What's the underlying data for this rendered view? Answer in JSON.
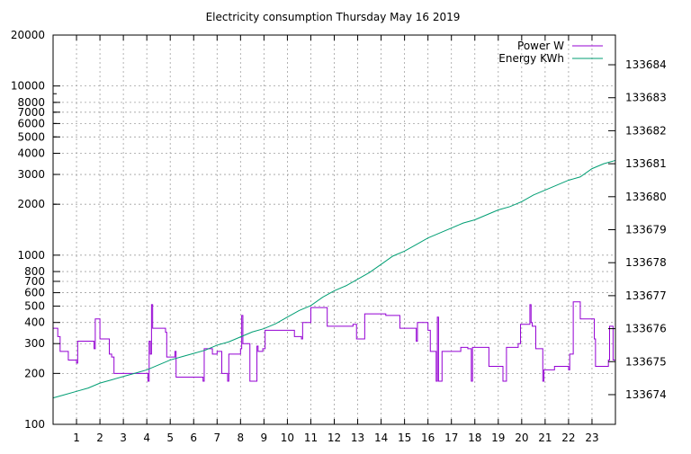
{
  "chart_data": {
    "type": "line",
    "title": "Electricity consumption Thursday May 16 2019",
    "xlabel": "",
    "ylabel": "",
    "y2label": "",
    "x_range": [
      0,
      24
    ],
    "y_range": [
      100,
      20000
    ],
    "y_scale": "log",
    "y2_range": [
      133673.1,
      133684.9
    ],
    "x_tick_labels": [
      "1",
      "2",
      "3",
      "4",
      "5",
      "6",
      "7",
      "8",
      "9",
      "10",
      "11",
      "12",
      "13",
      "14",
      "15",
      "16",
      "17",
      "18",
      "19",
      "20",
      "21",
      "22",
      "23"
    ],
    "y_tick_labels": [
      "100",
      "200",
      "300",
      "400",
      "500",
      "600",
      "700",
      "800",
      "1000",
      "2000",
      "3000",
      "4000",
      "5000",
      "6000",
      "7000",
      "8000",
      "10000",
      "20000"
    ],
    "y2_tick_labels": [
      "133674",
      "133675",
      "133676",
      "133677",
      "133678",
      "133679",
      "133680",
      "133681",
      "133682",
      "133683",
      "133684"
    ],
    "grid": true,
    "legend_position": "top-right",
    "series": [
      {
        "name": "Power W",
        "axis": "left",
        "color": "#9400d3",
        "step": true,
        "points": [
          [
            0.0,
            370
          ],
          [
            0.2,
            330
          ],
          [
            0.3,
            270
          ],
          [
            0.65,
            240
          ],
          [
            1.0,
            230
          ],
          [
            1.05,
            310
          ],
          [
            1.7,
            310
          ],
          [
            1.75,
            280
          ],
          [
            1.8,
            420
          ],
          [
            2.0,
            320
          ],
          [
            2.4,
            260
          ],
          [
            2.5,
            250
          ],
          [
            2.6,
            200
          ],
          [
            3.5,
            200
          ],
          [
            4.05,
            180
          ],
          [
            4.1,
            310
          ],
          [
            4.15,
            260
          ],
          [
            4.2,
            510
          ],
          [
            4.25,
            370
          ],
          [
            4.8,
            350
          ],
          [
            4.85,
            250
          ],
          [
            5.2,
            270
          ],
          [
            5.25,
            190
          ],
          [
            6.4,
            180
          ],
          [
            6.45,
            280
          ],
          [
            6.8,
            260
          ],
          [
            7.0,
            270
          ],
          [
            7.2,
            200
          ],
          [
            7.45,
            180
          ],
          [
            7.5,
            260
          ],
          [
            8.0,
            280
          ],
          [
            8.05,
            440
          ],
          [
            8.1,
            300
          ],
          [
            8.4,
            180
          ],
          [
            8.7,
            290
          ],
          [
            8.75,
            270
          ],
          [
            8.95,
            280
          ],
          [
            9.05,
            360
          ],
          [
            10.3,
            330
          ],
          [
            10.6,
            320
          ],
          [
            10.65,
            400
          ],
          [
            11.0,
            490
          ],
          [
            11.7,
            380
          ],
          [
            12.8,
            390
          ],
          [
            12.95,
            320
          ],
          [
            13.3,
            450
          ],
          [
            14.2,
            440
          ],
          [
            14.8,
            370
          ],
          [
            15.5,
            310
          ],
          [
            15.55,
            400
          ],
          [
            16.0,
            360
          ],
          [
            16.1,
            270
          ],
          [
            16.35,
            180
          ],
          [
            16.4,
            430
          ],
          [
            16.45,
            180
          ],
          [
            16.6,
            270
          ],
          [
            17.1,
            270
          ],
          [
            17.4,
            285
          ],
          [
            17.7,
            280
          ],
          [
            17.85,
            180
          ],
          [
            17.9,
            285
          ],
          [
            18.6,
            220
          ],
          [
            19.2,
            180
          ],
          [
            19.35,
            285
          ],
          [
            19.85,
            300
          ],
          [
            19.95,
            390
          ],
          [
            20.35,
            510
          ],
          [
            20.4,
            400
          ],
          [
            20.45,
            380
          ],
          [
            20.6,
            280
          ],
          [
            20.9,
            180
          ],
          [
            20.95,
            210
          ],
          [
            21.4,
            220
          ],
          [
            22.0,
            210
          ],
          [
            22.05,
            260
          ],
          [
            22.2,
            530
          ],
          [
            22.5,
            420
          ],
          [
            23.0,
            420
          ],
          [
            23.1,
            320
          ],
          [
            23.15,
            220
          ],
          [
            23.6,
            220
          ],
          [
            23.7,
            240
          ],
          [
            23.75,
            380
          ],
          [
            23.9,
            240
          ],
          [
            24.0,
            240
          ]
        ]
      },
      {
        "name": "Energy KWh",
        "axis": "right",
        "color": "#009e73",
        "step": false,
        "points": [
          [
            0,
            133673.9
          ],
          [
            0.5,
            133674.0
          ],
          [
            1.0,
            133674.1
          ],
          [
            1.5,
            133674.2
          ],
          [
            2.0,
            133674.35
          ],
          [
            2.5,
            133674.45
          ],
          [
            3.0,
            133674.55
          ],
          [
            3.5,
            133674.65
          ],
          [
            4.0,
            133674.75
          ],
          [
            4.5,
            133674.9
          ],
          [
            5.0,
            133675.05
          ],
          [
            5.5,
            133675.15
          ],
          [
            6.0,
            133675.25
          ],
          [
            6.5,
            133675.35
          ],
          [
            7.0,
            133675.5
          ],
          [
            7.5,
            133675.6
          ],
          [
            8.0,
            133675.75
          ],
          [
            8.5,
            133675.9
          ],
          [
            9.0,
            133676.0
          ],
          [
            9.5,
            133676.15
          ],
          [
            10.0,
            133676.35
          ],
          [
            10.5,
            133676.55
          ],
          [
            11.0,
            133676.7
          ],
          [
            11.5,
            133676.95
          ],
          [
            12.0,
            133677.15
          ],
          [
            12.5,
            133677.3
          ],
          [
            13.0,
            133677.5
          ],
          [
            13.5,
            133677.7
          ],
          [
            14.0,
            133677.95
          ],
          [
            14.5,
            133678.2
          ],
          [
            15.0,
            133678.35
          ],
          [
            15.5,
            133678.55
          ],
          [
            16.0,
            133678.75
          ],
          [
            16.5,
            133678.9
          ],
          [
            17.0,
            133679.05
          ],
          [
            17.5,
            133679.2
          ],
          [
            18.0,
            133679.3
          ],
          [
            18.5,
            133679.45
          ],
          [
            19.0,
            133679.6
          ],
          [
            19.5,
            133679.7
          ],
          [
            20.0,
            133679.85
          ],
          [
            20.5,
            133680.05
          ],
          [
            21.0,
            133680.2
          ],
          [
            21.5,
            133680.35
          ],
          [
            22.0,
            133680.5
          ],
          [
            22.5,
            133680.6
          ],
          [
            23.0,
            133680.85
          ],
          [
            23.5,
            133681.0
          ],
          [
            24.0,
            133681.1
          ]
        ]
      }
    ]
  }
}
